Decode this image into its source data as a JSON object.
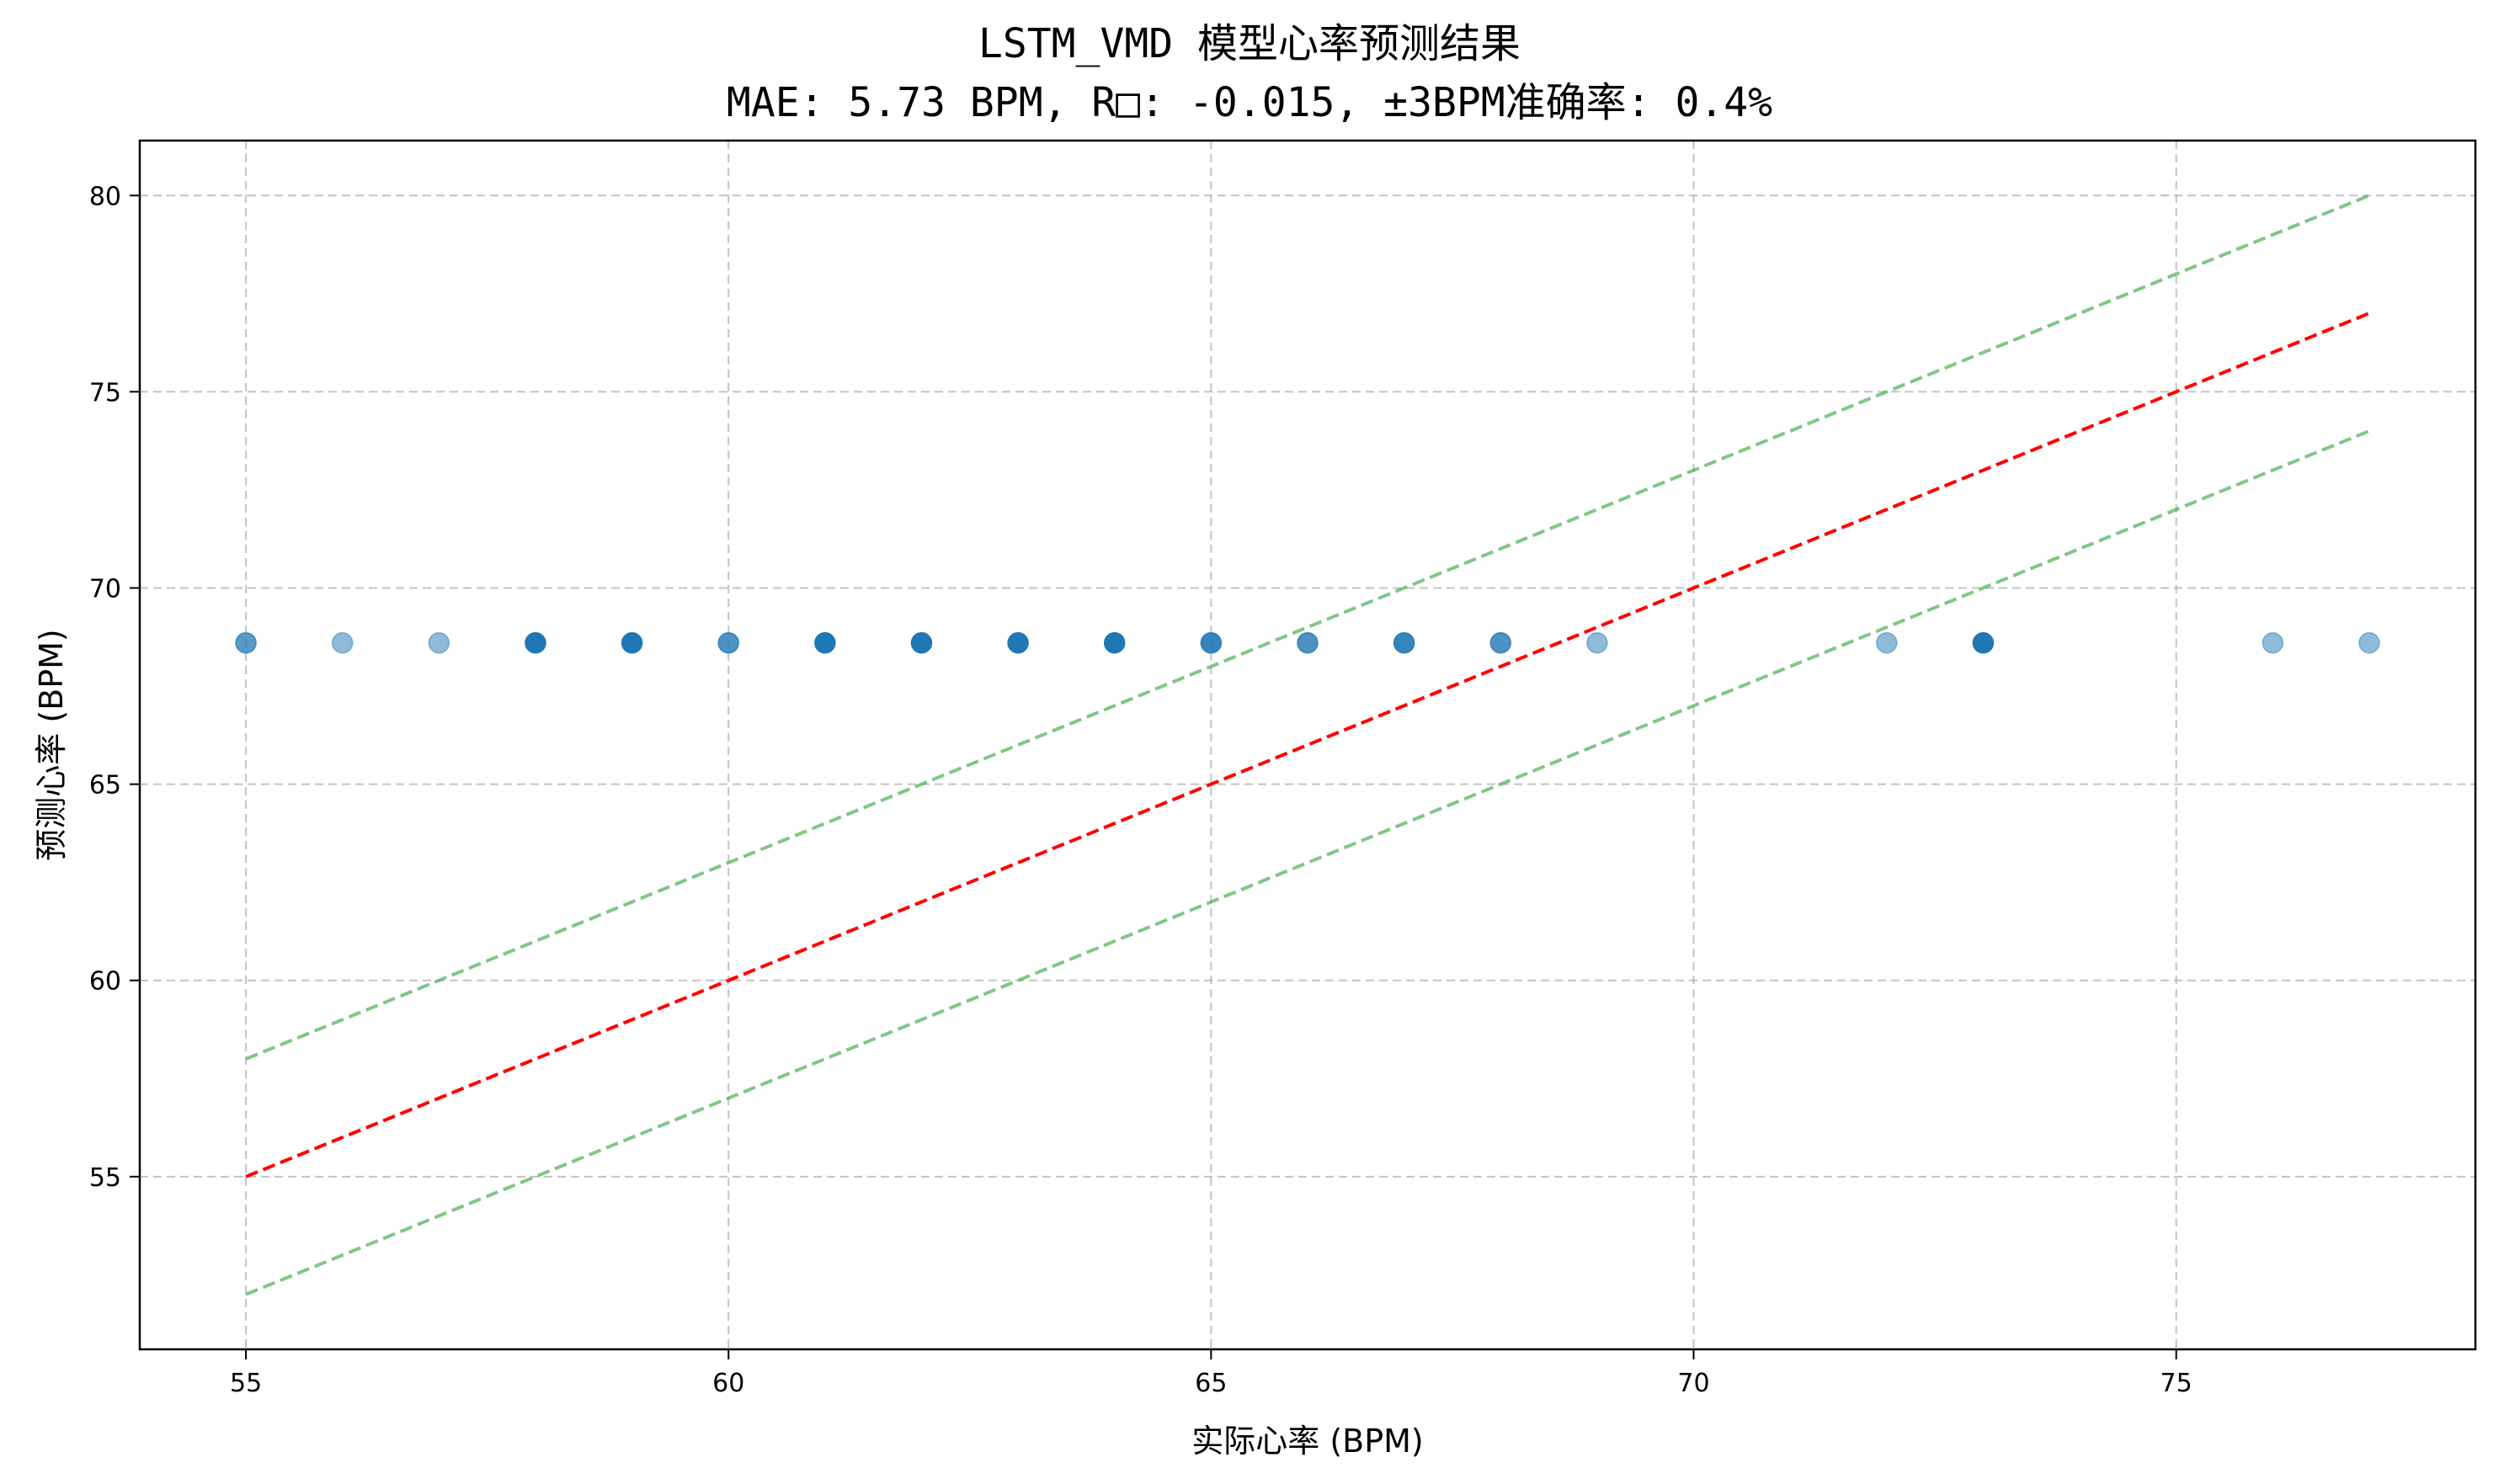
{
  "chart_data": {
    "type": "scatter",
    "title": "LSTM_VMD 模型心率预测结果",
    "subtitle": "MAE: 5.73 BPM, R□: -0.015, ±3BPM准确率: 0.4%",
    "xlabel": "实际心率 (BPM)",
    "ylabel": "预测心率 (BPM)",
    "xlim": [
      53.9,
      78.1
    ],
    "ylim": [
      50.6,
      81.4
    ],
    "xticks": [
      55,
      60,
      65,
      70,
      75
    ],
    "yticks": [
      55,
      60,
      65,
      70,
      75,
      80
    ],
    "grid": true,
    "points": {
      "color": "#1f77b4",
      "x": [
        55,
        56,
        57,
        58,
        59,
        60,
        61,
        62,
        63,
        64,
        65,
        66,
        67,
        68,
        69,
        72,
        73,
        76,
        77
      ],
      "y": [
        68.6,
        68.6,
        68.6,
        68.6,
        68.6,
        68.6,
        68.6,
        68.6,
        68.6,
        68.6,
        68.6,
        68.6,
        68.6,
        68.6,
        68.6,
        68.6,
        68.6,
        68.6,
        68.6
      ],
      "opacity": [
        0.75,
        0.5,
        0.5,
        1.0,
        1.0,
        0.8,
        1.0,
        1.0,
        1.0,
        1.0,
        0.9,
        0.8,
        0.9,
        0.8,
        0.5,
        0.5,
        1.0,
        0.5,
        0.5
      ]
    },
    "reference_lines": [
      {
        "x": [
          55,
          77
        ],
        "y": [
          55,
          77
        ],
        "color": "#ff0000",
        "style": "dashed"
      },
      {
        "x": [
          55,
          77
        ],
        "y": [
          58,
          80
        ],
        "color": "#4caf50",
        "style": "dashed",
        "alpha": 0.7
      },
      {
        "x": [
          55,
          77
        ],
        "y": [
          52,
          74
        ],
        "color": "#4caf50",
        "style": "dashed",
        "alpha": 0.7
      }
    ]
  }
}
